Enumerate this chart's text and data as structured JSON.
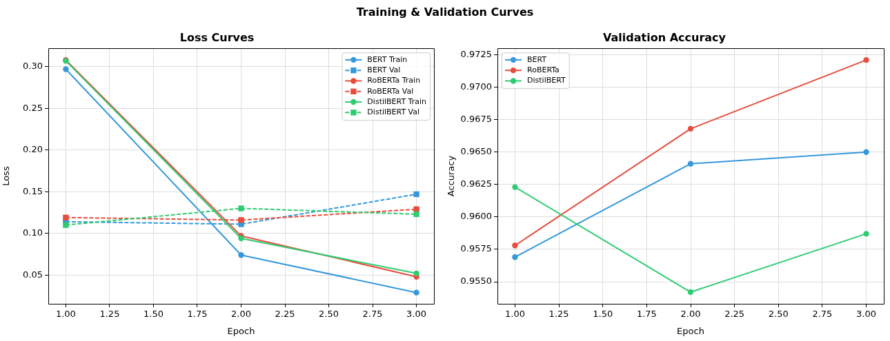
{
  "chart_data": [
    {
      "type": "line",
      "title": "Loss Curves",
      "xlabel": "Epoch",
      "ylabel": "Loss",
      "annotations": [
        "Training & Validation Curves"
      ],
      "x": [
        1,
        2,
        3
      ],
      "series": [
        {
          "name": "BERT Train",
          "color": "#3498db",
          "values": [
            0.297,
            0.074,
            0.029
          ],
          "marker": "circle",
          "line_style": "solid"
        },
        {
          "name": "BERT Val",
          "color": "#3498db",
          "values": [
            0.114,
            0.111,
            0.147
          ],
          "marker": "square",
          "line_style": "dashed"
        },
        {
          "name": "RoBERTa Train",
          "color": "#e74c3c",
          "values": [
            0.308,
            0.097,
            0.048
          ],
          "marker": "circle",
          "line_style": "solid"
        },
        {
          "name": "RoBERTa Val",
          "color": "#e74c3c",
          "values": [
            0.119,
            0.116,
            0.129
          ],
          "marker": "square",
          "line_style": "dashed"
        },
        {
          "name": "DistilBERT Train",
          "color": "#2ecc71",
          "values": [
            0.307,
            0.094,
            0.052
          ],
          "marker": "circle",
          "line_style": "solid"
        },
        {
          "name": "DistilBERT Val",
          "color": "#2ecc71",
          "values": [
            0.11,
            0.13,
            0.123
          ],
          "marker": "square",
          "line_style": "dashed"
        }
      ],
      "xlim": [
        0.9,
        3.1
      ],
      "xticks": [
        {
          "value": 1,
          "label": "1.00"
        },
        {
          "value": 1.25,
          "label": "1.25"
        },
        {
          "value": 1.5,
          "label": "1.50"
        },
        {
          "value": 1.75,
          "label": "1.75"
        },
        {
          "value": 2,
          "label": "2.00"
        },
        {
          "value": 2.25,
          "label": "2.25"
        },
        {
          "value": 2.5,
          "label": "2.50"
        },
        {
          "value": 2.75,
          "label": "2.75"
        },
        {
          "value": 3,
          "label": "3.00"
        }
      ],
      "ylim": [
        0.0155,
        0.322
      ],
      "yticks": [
        {
          "value": 0.05,
          "label": "0.05"
        },
        {
          "value": 0.1,
          "label": "0.10"
        },
        {
          "value": 0.15,
          "label": "0.15"
        },
        {
          "value": 0.2,
          "label": "0.20"
        },
        {
          "value": 0.25,
          "label": "0.25"
        },
        {
          "value": 0.3,
          "label": "0.30"
        }
      ],
      "grid": true,
      "legend": "top right"
    },
    {
      "type": "line",
      "title": "Validation Accuracy",
      "xlabel": "Epoch",
      "ylabel": "Accuracy",
      "x": [
        1,
        2,
        3
      ],
      "series": [
        {
          "name": "BERT",
          "color": "#3498db",
          "values": [
            0.9569,
            0.9641,
            0.965
          ],
          "marker": "circle",
          "line_style": "solid"
        },
        {
          "name": "RoBERTa",
          "color": "#e74c3c",
          "values": [
            0.9578,
            0.9668,
            0.9721
          ],
          "marker": "circle",
          "line_style": "solid"
        },
        {
          "name": "DistilBERT",
          "color": "#2ecc71",
          "values": [
            0.9623,
            0.9542,
            0.9587
          ],
          "marker": "circle",
          "line_style": "solid"
        }
      ],
      "xlim": [
        0.9,
        3.1
      ],
      "xticks": [
        {
          "value": 1,
          "label": "1.00"
        },
        {
          "value": 1.25,
          "label": "1.25"
        },
        {
          "value": 1.5,
          "label": "1.50"
        },
        {
          "value": 1.75,
          "label": "1.75"
        },
        {
          "value": 2,
          "label": "2.00"
        },
        {
          "value": 2.25,
          "label": "2.25"
        },
        {
          "value": 2.5,
          "label": "2.50"
        },
        {
          "value": 2.75,
          "label": "2.75"
        },
        {
          "value": 3,
          "label": "3.00"
        }
      ],
      "ylim": [
        0.9533,
        0.973
      ],
      "yticks": [
        {
          "value": 0.955,
          "label": "0.9550"
        },
        {
          "value": 0.9575,
          "label": "0.9575"
        },
        {
          "value": 0.96,
          "label": "0.9600"
        },
        {
          "value": 0.9625,
          "label": "0.9625"
        },
        {
          "value": 0.965,
          "label": "0.9650"
        },
        {
          "value": 0.9675,
          "label": "0.9675"
        },
        {
          "value": 0.97,
          "label": "0.9700"
        },
        {
          "value": 0.9725,
          "label": "0.9725"
        }
      ],
      "grid": true,
      "legend": "top left"
    }
  ]
}
